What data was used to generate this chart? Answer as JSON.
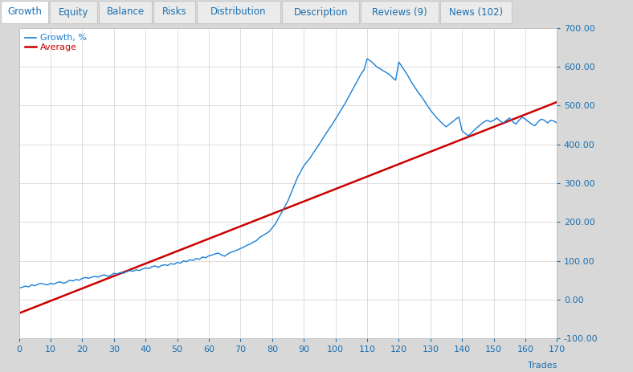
{
  "tabs": [
    "Growth",
    "Equity",
    "Balance",
    "Risks",
    "Distribution",
    "Description",
    "Reviews (9)",
    "News (102)"
  ],
  "active_tab": "Growth",
  "tab_bg": "#ebebeb",
  "active_tab_bg": "#ffffff",
  "tab_border_color": "#c8c8c8",
  "tab_text_color": "#1a6faf",
  "outer_bg": "#d8d8d8",
  "chart_bg": "#ffffff",
  "grid_color": "#d0d0d0",
  "blue_line_color": "#1a7fd4",
  "red_line_color": "#cc0000",
  "legend_growth": "Growth, %",
  "legend_average": "Average",
  "xlabel": "Trades",
  "ylabel_right_ticks": [
    -100,
    0,
    100,
    200,
    300,
    400,
    500,
    600,
    700
  ],
  "ylabel_right_labels": [
    "-100.00",
    "0.00",
    "100.00",
    "200.00",
    "300.00",
    "400.00",
    "500.00",
    "600.00",
    "700.00"
  ],
  "xticks": [
    0,
    10,
    20,
    30,
    40,
    50,
    60,
    70,
    80,
    90,
    100,
    110,
    120,
    130,
    140,
    150,
    160,
    170
  ],
  "xlim": [
    0,
    170
  ],
  "ylim": [
    -100,
    700
  ],
  "growth_x": [
    0,
    1,
    2,
    3,
    4,
    5,
    6,
    7,
    8,
    9,
    10,
    11,
    12,
    13,
    14,
    15,
    16,
    17,
    18,
    19,
    20,
    21,
    22,
    23,
    24,
    25,
    26,
    27,
    28,
    29,
    30,
    31,
    32,
    33,
    34,
    35,
    36,
    37,
    38,
    39,
    40,
    41,
    42,
    43,
    44,
    45,
    46,
    47,
    48,
    49,
    50,
    51,
    52,
    53,
    54,
    55,
    56,
    57,
    58,
    59,
    60,
    61,
    62,
    63,
    64,
    65,
    66,
    67,
    68,
    69,
    70,
    71,
    72,
    73,
    74,
    75,
    76,
    77,
    78,
    79,
    80,
    81,
    82,
    83,
    84,
    85,
    86,
    87,
    88,
    89,
    90,
    91,
    92,
    93,
    94,
    95,
    96,
    97,
    98,
    99,
    100,
    101,
    102,
    103,
    104,
    105,
    106,
    107,
    108,
    109,
    110,
    111,
    112,
    113,
    114,
    115,
    116,
    117,
    118,
    119,
    120,
    121,
    122,
    123,
    124,
    125,
    126,
    127,
    128,
    129,
    130,
    131,
    132,
    133,
    134,
    135,
    136,
    137,
    138,
    139,
    140,
    141,
    142,
    143,
    144,
    145,
    146,
    147,
    148,
    149,
    150,
    151,
    152,
    153,
    154,
    155,
    156,
    157,
    158,
    159,
    160,
    161,
    162,
    163,
    164,
    165,
    166,
    167,
    168,
    169,
    170
  ],
  "growth_y": [
    30,
    32,
    35,
    33,
    38,
    36,
    40,
    42,
    40,
    38,
    42,
    40,
    44,
    46,
    42,
    45,
    50,
    48,
    52,
    50,
    55,
    57,
    55,
    58,
    60,
    58,
    62,
    64,
    60,
    63,
    68,
    66,
    70,
    68,
    72,
    75,
    73,
    77,
    75,
    79,
    82,
    80,
    85,
    87,
    83,
    88,
    90,
    88,
    93,
    91,
    96,
    94,
    100,
    98,
    103,
    101,
    106,
    104,
    110,
    108,
    113,
    115,
    118,
    120,
    115,
    112,
    118,
    122,
    125,
    128,
    132,
    135,
    140,
    143,
    148,
    152,
    160,
    165,
    170,
    175,
    185,
    195,
    210,
    225,
    240,
    255,
    275,
    295,
    315,
    330,
    345,
    355,
    365,
    378,
    390,
    402,
    415,
    428,
    440,
    452,
    465,
    478,
    492,
    505,
    520,
    535,
    550,
    565,
    580,
    592,
    620,
    615,
    608,
    600,
    595,
    590,
    585,
    580,
    572,
    565,
    612,
    600,
    588,
    575,
    560,
    548,
    535,
    525,
    513,
    500,
    488,
    478,
    468,
    460,
    452,
    445,
    452,
    458,
    465,
    470,
    435,
    428,
    422,
    430,
    438,
    445,
    452,
    458,
    462,
    458,
    462,
    468,
    460,
    455,
    462,
    468,
    458,
    452,
    462,
    470,
    465,
    458,
    452,
    448,
    458,
    465,
    462,
    455,
    462,
    460,
    455
  ],
  "avg_slope": 3.2,
  "avg_intercept": -35,
  "avg_x_start": 0,
  "avg_x_end": 170
}
